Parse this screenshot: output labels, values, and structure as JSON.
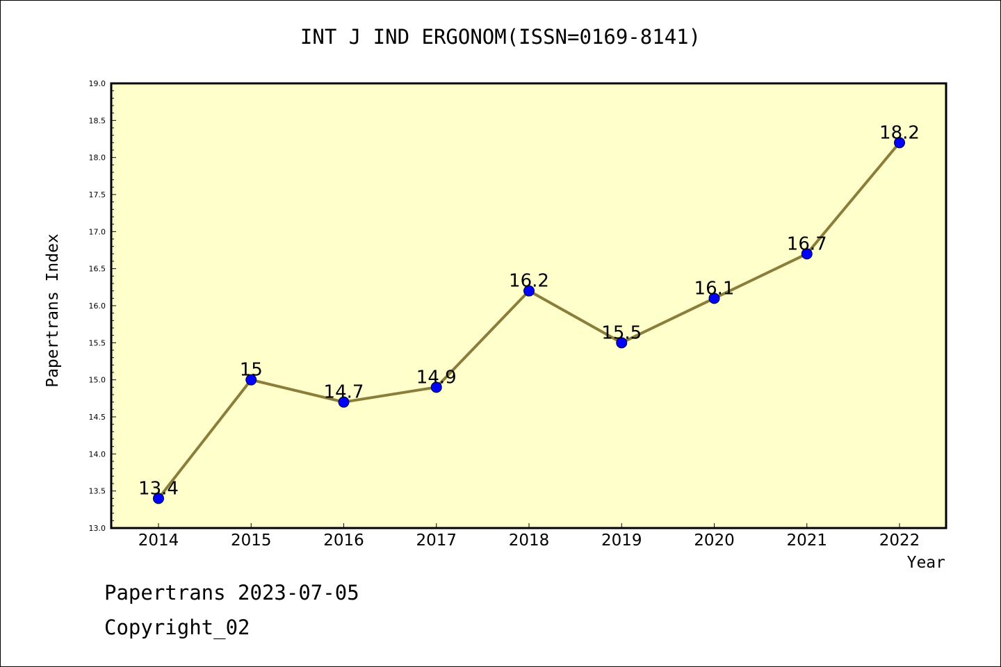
{
  "chart_data": {
    "type": "line",
    "title": "INT J IND ERGONOM(ISSN=0169-8141)",
    "xlabel": "Year",
    "ylabel": "Papertrans Index",
    "categories": [
      "2014",
      "2015",
      "2016",
      "2017",
      "2018",
      "2019",
      "2020",
      "2021",
      "2022"
    ],
    "series": [
      {
        "values": [
          13.4,
          15,
          14.7,
          14.9,
          16.2,
          15.5,
          16.1,
          16.7,
          18.2
        ],
        "labels": [
          "13.4",
          "15",
          "14.7",
          "14.9",
          "16.2",
          "15.5",
          "16.1",
          "16.7",
          "18.2"
        ]
      }
    ],
    "ylim": [
      13.0,
      19.0
    ],
    "y_ticks": [
      "13.0",
      "13.5",
      "14.0",
      "14.5",
      "15.0",
      "15.5",
      "16.0",
      "16.5",
      "17.0",
      "17.5",
      "18.0",
      "18.5",
      "19.0"
    ],
    "grid": false,
    "colors": {
      "plot_background": "#ffffcc",
      "line": "#8b7d3a",
      "marker": "#0000ff"
    }
  },
  "footer": {
    "date_line": "Papertrans 2023-07-05",
    "copyright_line": "Copyright_02"
  }
}
